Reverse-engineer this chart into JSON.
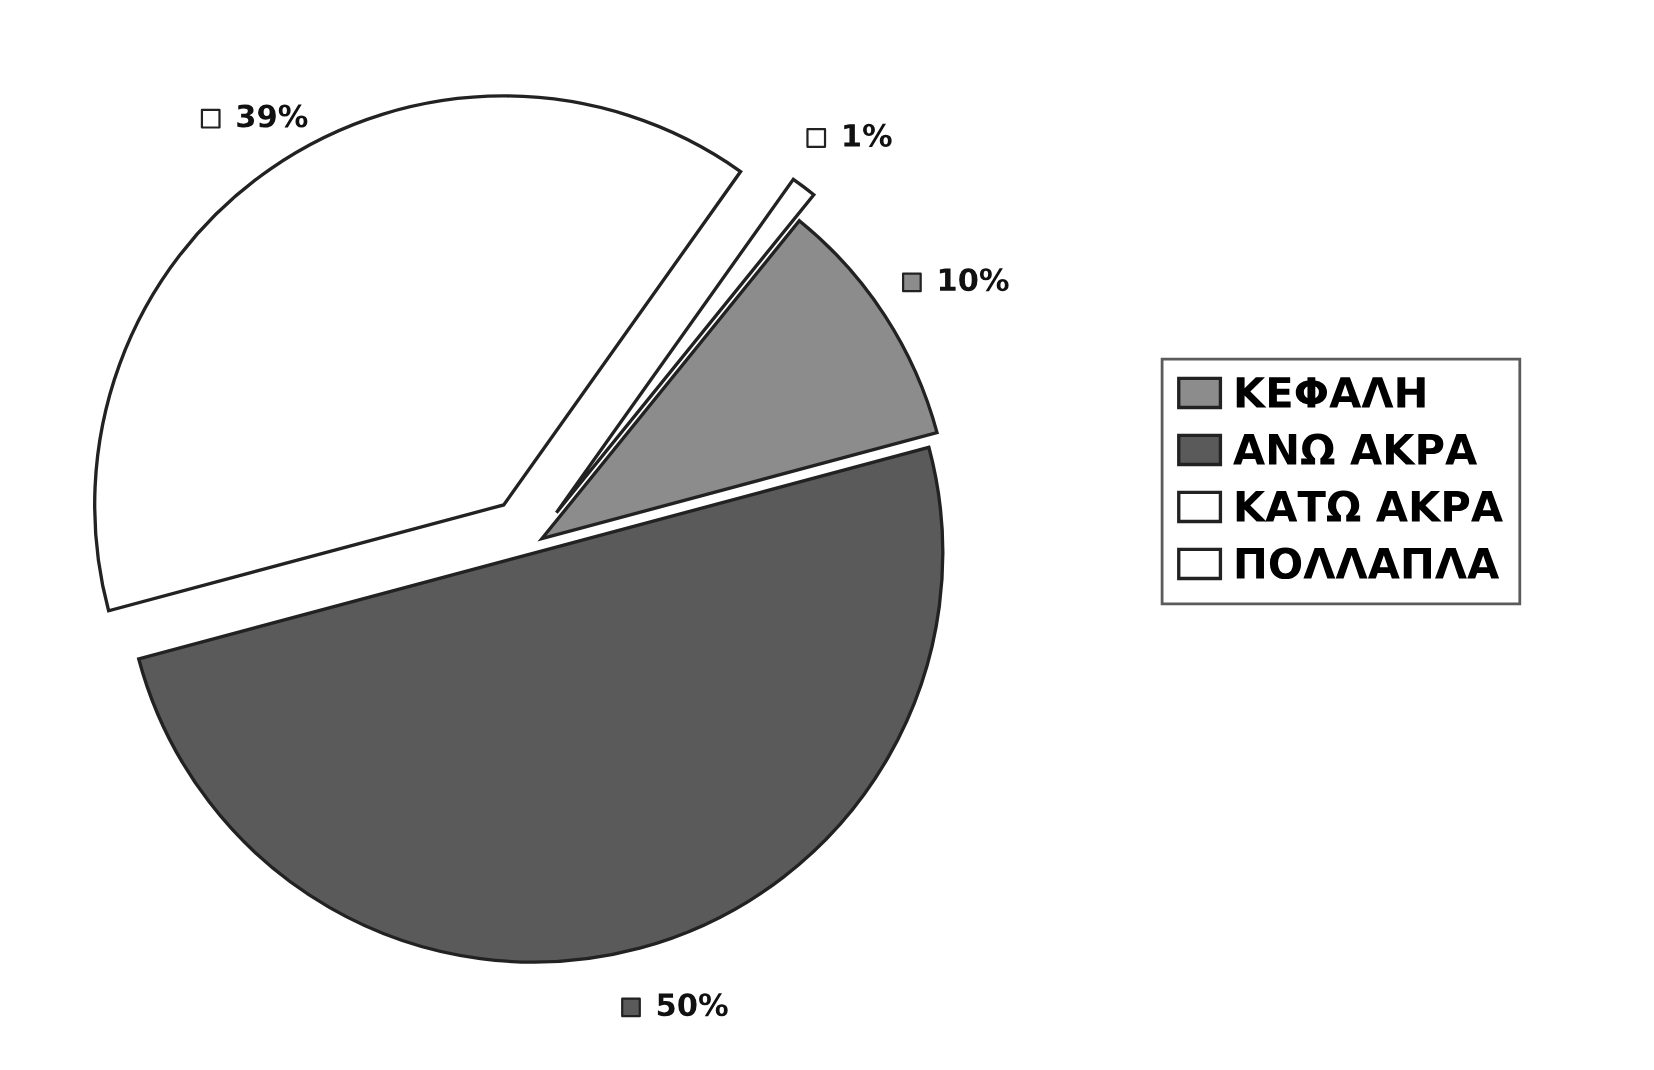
{
  "chart_data": {
    "type": "pie",
    "categories": [
      "ΚΕΦΑΛΗ",
      "ΑΝΩ ΑΚΡΑ",
      "ΚΑΤΩ ΑΚΡΑ",
      "ΠΟΛΛΑΠΛΑ"
    ],
    "values": [
      10,
      50,
      39,
      1
    ],
    "colors": [
      "#8c8c8c",
      "#5a5a5a",
      "#ffffff",
      "#ffffff"
    ],
    "value_labels": [
      "10%",
      "50%",
      "39%",
      "1%"
    ],
    "legend": "right"
  }
}
